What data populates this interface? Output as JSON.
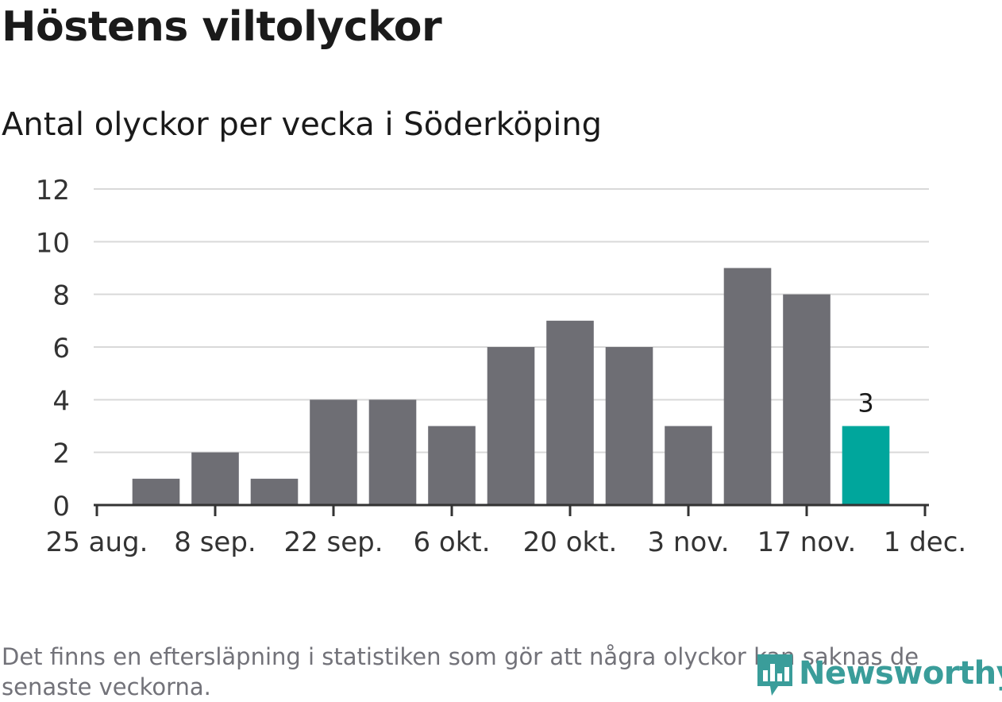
{
  "chart_data": {
    "type": "bar",
    "title": "Höstens viltolyckor",
    "subtitle": "Antal olyckor per vecka i Söderköping",
    "x_tick_labels": [
      "25 aug.",
      "8 sep.",
      "22 sep.",
      "6 okt.",
      "20 okt.",
      "3 nov.",
      "17 nov.",
      "1 dec."
    ],
    "y_ticks": [
      0,
      2,
      4,
      6,
      8,
      10,
      12
    ],
    "ylim": [
      0,
      12
    ],
    "grid": true,
    "values": [
      1,
      2,
      1,
      4,
      4,
      3,
      6,
      7,
      6,
      3,
      9,
      8,
      3
    ],
    "highlight_index": 12,
    "highlight_label": "3",
    "colors": {
      "bar": "#6e6e74",
      "highlight": "#00a69c",
      "grid": "#d9d9d9",
      "axis": "#333333"
    }
  },
  "footer": {
    "note": "Det finns en eftersläpning i statistiken som gör att några olyckor kan saknas de senaste veckorna.",
    "logo_text": "Newsworthy",
    "logo_icon": "newsworthy-logo-icon"
  }
}
